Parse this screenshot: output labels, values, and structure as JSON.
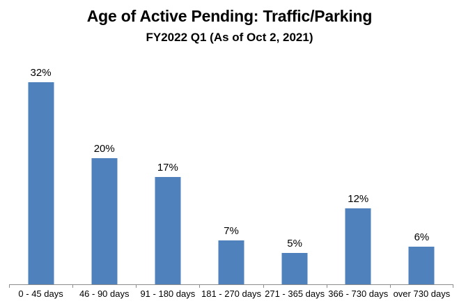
{
  "chart": {
    "title": "Age of Active Pending: Traffic/Parking",
    "subtitle": "FY2022 Q1 (As of Oct 2, 2021)"
  },
  "chart_data": {
    "type": "bar",
    "title": "Age of Active Pending: Traffic/Parking",
    "subtitle": "FY2022 Q1 (As of Oct 2, 2021)",
    "categories": [
      "0 - 45 days",
      "46 - 90 days",
      "91 - 180 days",
      "181 - 270 days",
      "271 - 365 days",
      "366 - 730 days",
      "over 730 days"
    ],
    "values": [
      32,
      20,
      17,
      7,
      5,
      12,
      6
    ],
    "value_labels": [
      "32%",
      "20%",
      "17%",
      "7%",
      "5%",
      "12%",
      "6%"
    ],
    "xlabel": "",
    "ylabel": "",
    "ylim": [
      0,
      35
    ],
    "grid": false,
    "legend": false,
    "y_axis_visible": false,
    "colors": {
      "bar": "#4f81bd",
      "axis": "#8c8c8c",
      "text": "#000000",
      "background": "#ffffff"
    }
  }
}
